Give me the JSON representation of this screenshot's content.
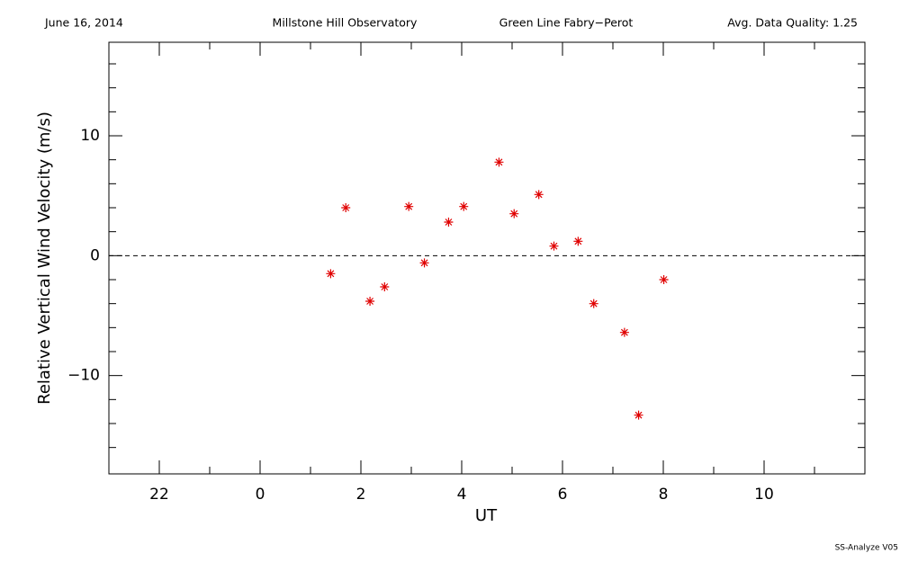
{
  "chart_data": {
    "type": "scatter",
    "header": {
      "date": "June 16, 2014",
      "observatory": "Millstone Hill Observatory",
      "instrument": "Green Line Fabry−Perot",
      "quality": "Avg. Data Quality: 1.25"
    },
    "footer": "SS-Analyze V05",
    "xlabel": "UT",
    "ylabel": "Relative Vertical Wind Velocity (m/s)",
    "xlim": [
      -3,
      12
    ],
    "ylim": [
      -18.2,
      17.8
    ],
    "xticks": [
      {
        "value": -2,
        "label": "22"
      },
      0,
      2,
      4,
      6,
      8,
      10
    ],
    "yticks": [
      {
        "value": -10,
        "label": "−10"
      },
      0,
      10
    ],
    "xminorticks": [
      -1,
      1,
      3,
      5,
      7,
      9,
      11
    ],
    "yminorticks": [
      -16,
      -14,
      -12,
      -8,
      -6,
      -4,
      -2,
      2,
      4,
      6,
      8,
      12,
      14,
      16
    ],
    "hline": 0,
    "series": [
      {
        "color": "#e00000",
        "x": [
          1.4,
          1.7,
          2.18,
          2.47,
          2.95,
          3.26,
          3.74,
          4.04,
          4.74,
          5.04,
          5.53,
          5.83,
          6.31,
          6.62,
          7.23,
          7.51,
          8.01
        ],
        "values": [
          -1.5,
          4.0,
          -3.8,
          -2.6,
          4.1,
          -0.6,
          2.8,
          4.1,
          7.8,
          3.5,
          5.1,
          0.8,
          1.2,
          -4.0,
          -6.4,
          -13.3,
          -2.0
        ]
      }
    ]
  }
}
